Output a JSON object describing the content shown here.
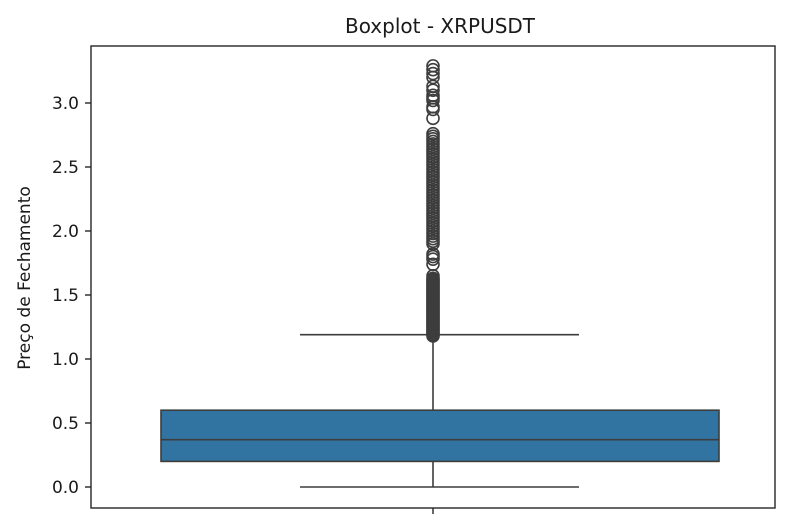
{
  "chart_data": {
    "type": "box",
    "title": "Boxplot - XRPUSDT",
    "xlabel": "",
    "ylabel": "Preço de Fechamento",
    "ylim": [
      -0.15,
      3.35
    ],
    "yticks": [
      0.0,
      0.5,
      1.0,
      1.5,
      2.0,
      2.5,
      3.0
    ],
    "ytick_labels": [
      "0.0",
      "0.5",
      "1.0",
      "1.5",
      "2.0",
      "2.5",
      "3.0"
    ],
    "grid": false,
    "legend": "none",
    "box": {
      "whisker_low": 0.0,
      "q1": 0.2,
      "median": 0.37,
      "q3": 0.6,
      "whisker_high": 1.19
    },
    "outliers": [
      1.18,
      1.19,
      1.2,
      1.21,
      1.22,
      1.23,
      1.24,
      1.25,
      1.26,
      1.27,
      1.28,
      1.29,
      1.3,
      1.31,
      1.32,
      1.33,
      1.34,
      1.35,
      1.36,
      1.37,
      1.38,
      1.39,
      1.4,
      1.41,
      1.42,
      1.43,
      1.44,
      1.45,
      1.46,
      1.47,
      1.48,
      1.49,
      1.5,
      1.51,
      1.52,
      1.53,
      1.54,
      1.55,
      1.56,
      1.57,
      1.58,
      1.59,
      1.6,
      1.61,
      1.62,
      1.63,
      1.65,
      1.74,
      1.78,
      1.8,
      1.82,
      1.9,
      1.92,
      1.94,
      1.96,
      1.98,
      2.0,
      2.02,
      2.04,
      2.06,
      2.08,
      2.1,
      2.12,
      2.14,
      2.16,
      2.18,
      2.2,
      2.22,
      2.24,
      2.26,
      2.28,
      2.3,
      2.32,
      2.34,
      2.36,
      2.38,
      2.4,
      2.42,
      2.44,
      2.46,
      2.48,
      2.5,
      2.52,
      2.54,
      2.56,
      2.58,
      2.6,
      2.62,
      2.64,
      2.66,
      2.68,
      2.7,
      2.72,
      2.74,
      2.76,
      2.88,
      2.95,
      2.97,
      3.02,
      3.04,
      3.06,
      3.1,
      3.13,
      3.2,
      3.23,
      3.26,
      3.29
    ],
    "colors": {
      "box_fill": "#3274a1",
      "line": "#3d3d3d",
      "frame": "#262626",
      "background": "#ffffff"
    }
  }
}
